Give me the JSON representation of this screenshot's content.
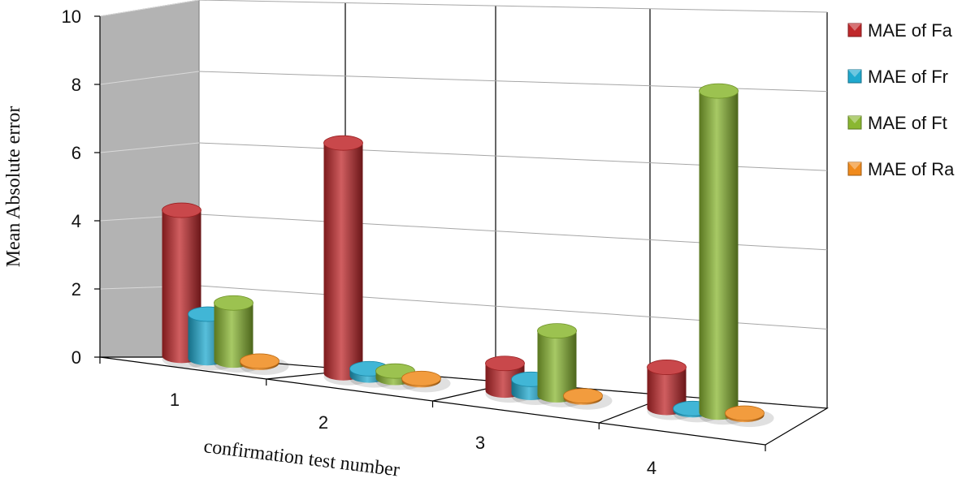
{
  "chart_data": {
    "type": "bar",
    "style": "3d-cylinder",
    "categories": [
      "1",
      "2",
      "3",
      "4"
    ],
    "series": [
      {
        "name": "MAE of Fa",
        "color": "#c0282b",
        "values": [
          4.3,
          6.8,
          0.8,
          1.2
        ]
      },
      {
        "name": "MAE of Fr",
        "color": "#1fa9cf",
        "values": [
          1.3,
          0.2,
          0.4,
          0.05
        ]
      },
      {
        "name": "MAE of Ft",
        "color": "#8ab731",
        "values": [
          1.7,
          0.2,
          1.9,
          9.5
        ]
      },
      {
        "name": "MAE of Ra",
        "color": "#f08a1c",
        "values": [
          0.05,
          0.05,
          0.05,
          0.05
        ]
      }
    ],
    "xlabel": "confirmation test number",
    "ylabel": "Mean Absolute error",
    "yticks": [
      "0",
      "2",
      "4",
      "6",
      "8",
      "10"
    ],
    "ylim": [
      0,
      10
    ],
    "grid": true,
    "legend": "right"
  }
}
